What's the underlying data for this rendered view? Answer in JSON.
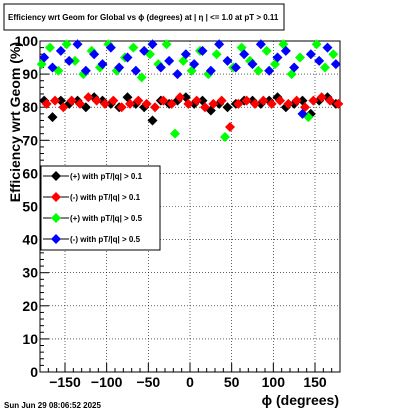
{
  "chart_data": {
    "type": "scatter",
    "title": "Efficiency wrt Geom for Global vs ϕ (degrees) at |  η  | <= 1.0 at pT > 0.11",
    "xlabel": "ϕ (degrees)",
    "ylabel": "Efficiency wrt Geom (%)",
    "xlim": [
      -180,
      180
    ],
    "ylim": [
      0,
      100
    ],
    "x_ticks": [
      -150,
      -100,
      -50,
      0,
      50,
      100,
      150
    ],
    "x_tick_labels": [
      "−150",
      "−100",
      "−50",
      "0",
      "50",
      "100",
      "150"
    ],
    "y_ticks": [
      0,
      10,
      20,
      30,
      40,
      50,
      60,
      70,
      80,
      90,
      100
    ],
    "y_tick_labels": [
      "0",
      "10",
      "20",
      "30",
      "40",
      "50",
      "60",
      "70",
      "80",
      "90",
      "100"
    ],
    "grid": true,
    "legend_position": "left-middle",
    "series": [
      {
        "name": "(+) with pT/|q| > 0.1",
        "color": "#000000",
        "x": [
          -175,
          -165,
          -155,
          -145,
          -135,
          -125,
          -115,
          -105,
          -95,
          -85,
          -75,
          -65,
          -55,
          -45,
          -35,
          -25,
          -15,
          -5,
          5,
          15,
          25,
          35,
          45,
          55,
          65,
          75,
          85,
          95,
          105,
          115,
          125,
          135,
          145,
          155,
          165,
          175
        ],
        "y": [
          82,
          77,
          82,
          81,
          82,
          80,
          83,
          82,
          81,
          80,
          83,
          81,
          80,
          76,
          82,
          81,
          82,
          83,
          81,
          82,
          79,
          81,
          80,
          81,
          82,
          82,
          81,
          82,
          83,
          80,
          81,
          82,
          78,
          82,
          83,
          81
        ]
      },
      {
        "name": "(-) with pT/|q| > 0.1",
        "color": "#ff0000",
        "x": [
          -172,
          -162,
          -152,
          -142,
          -132,
          -122,
          -112,
          -102,
          -92,
          -82,
          -72,
          -62,
          -52,
          -42,
          -32,
          -22,
          -12,
          -2,
          8,
          18,
          28,
          38,
          48,
          58,
          68,
          78,
          88,
          98,
          108,
          118,
          128,
          138,
          148,
          158,
          168,
          178
        ],
        "y": [
          81,
          82,
          80,
          82,
          81,
          83,
          82,
          81,
          82,
          80,
          81,
          82,
          81,
          80,
          82,
          81,
          83,
          81,
          82,
          80,
          81,
          82,
          74,
          81,
          82,
          81,
          82,
          81,
          82,
          81,
          82,
          80,
          82,
          83,
          82,
          81
        ]
      },
      {
        "name": "(+) with pT/|q| > 0.5",
        "color": "#00ff00",
        "x": [
          -178,
          -168,
          -158,
          -148,
          -138,
          -128,
          -118,
          -108,
          -98,
          -88,
          -78,
          -68,
          -58,
          -48,
          -38,
          -28,
          -18,
          -8,
          2,
          12,
          22,
          32,
          42,
          52,
          62,
          72,
          82,
          92,
          102,
          112,
          122,
          132,
          142,
          152,
          162,
          172
        ],
        "y": [
          93,
          98,
          91,
          99,
          94,
          90,
          97,
          92,
          99,
          91,
          95,
          98,
          89,
          96,
          93,
          99,
          72,
          94,
          91,
          97,
          90,
          96,
          71,
          92,
          98,
          94,
          91,
          97,
          93,
          99,
          90,
          95,
          77,
          99,
          92,
          96
        ]
      },
      {
        "name": "(-) with pT/|q| > 0.5",
        "color": "#0000ff",
        "x": [
          -175,
          -165,
          -155,
          -145,
          -135,
          -125,
          -115,
          -105,
          -95,
          -85,
          -75,
          -65,
          -55,
          -45,
          -35,
          -25,
          -15,
          -5,
          5,
          15,
          25,
          35,
          45,
          55,
          65,
          75,
          85,
          95,
          105,
          115,
          125,
          135,
          145,
          155,
          165,
          175
        ],
        "y": [
          95,
          92,
          97,
          94,
          99,
          91,
          96,
          93,
          98,
          92,
          95,
          91,
          97,
          99,
          92,
          94,
          90,
          96,
          93,
          97,
          91,
          99,
          94,
          92,
          96,
          93,
          99,
          91,
          95,
          97,
          92,
          78,
          96,
          94,
          98,
          93
        ]
      }
    ]
  },
  "timestamp": "Sun Jun 29 08:06:52 2025"
}
